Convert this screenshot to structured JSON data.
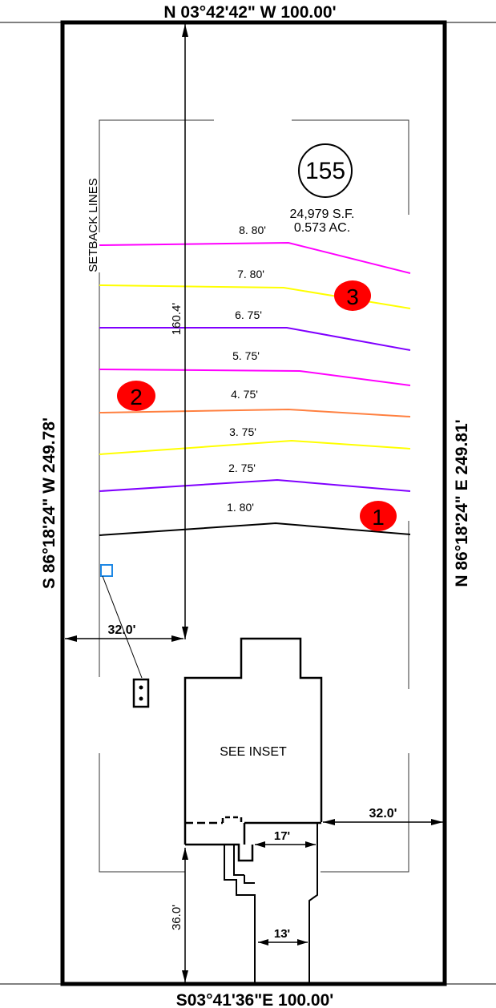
{
  "boundary": {
    "north": "N 03°42'42\" W   100.00'",
    "south": "S03°41'36\"E   100.00'",
    "west": "S 86°18'24\" W   249.78'",
    "east": "N 86°18'24\" E   249.81'"
  },
  "lot": {
    "number": "155",
    "area_sf": "24,979  S.F.",
    "area_ac": "0.573  AC."
  },
  "setback_label": "SETBACK  LINES",
  "contours": [
    {
      "label": "8. 80'",
      "color": "#ff00ff"
    },
    {
      "label": "7. 80'",
      "color": "#ffff00"
    },
    {
      "label": "6. 75'",
      "color": "#8000ff"
    },
    {
      "label": "5. 75'",
      "color": "#ff00ff"
    },
    {
      "label": "4. 75'",
      "color": "#ff8040"
    },
    {
      "label": "3. 75'",
      "color": "#ffff00"
    },
    {
      "label": "2. 75'",
      "color": "#8000ff"
    },
    {
      "label": "1. 80'",
      "color": "#000000"
    }
  ],
  "markers": [
    {
      "label": "1",
      "color": "#ff0000"
    },
    {
      "label": "2",
      "color": "#ff0000"
    },
    {
      "label": "3",
      "color": "#ff0000"
    }
  ],
  "dimensions": {
    "depth_front": "160.4'",
    "side_left": "32.0'",
    "side_right": "32.0'",
    "rear": "36.0'",
    "width_17": "17'",
    "width_13": "13'"
  },
  "house_label": "SEE  INSET"
}
